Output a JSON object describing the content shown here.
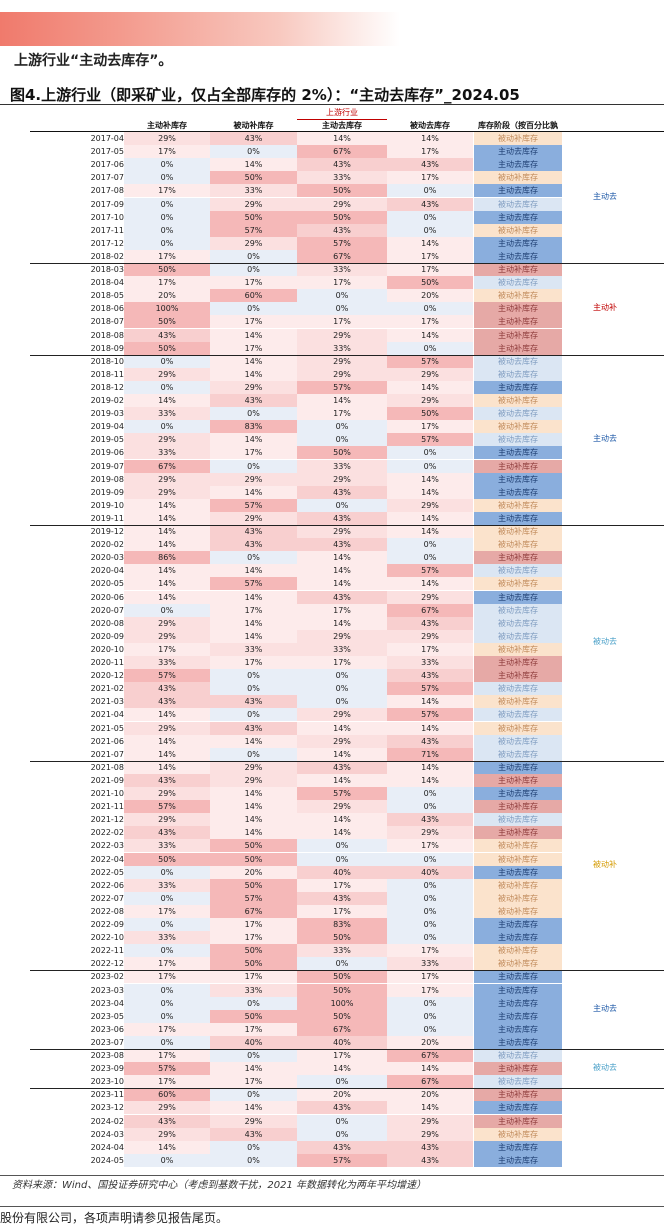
{
  "intro_text": "上游行业“主动去库存”。",
  "figure_title": "图4.上游行业（即采矿业，仅占全部库存的 2%）：“主动去库存”_2024.05",
  "group_header": "上游行业",
  "columns": [
    "主动补库存",
    "被动补库存",
    "主动去库存",
    "被动去库存",
    "库存阶段（按百分比孰高）"
  ],
  "stage_colors": {
    "主动补库存": "#e6a9a6",
    "被动补库存": "#fbe3cc",
    "主动去库存": "#8aaedd",
    "被动去库存": "#dbe6f3"
  },
  "stage_text_colors": {
    "主动补库存": "#8e3b3b",
    "被动补库存": "#c08a5a",
    "主动去库存": "#1f3f73",
    "被动去库存": "#7f9cc0"
  },
  "group_text_colors": {
    "主动去": "#1f5aa8",
    "主动补": "#c00000",
    "被动去": "#4aa0c8",
    "被动补": "#d49a00"
  },
  "rows": [
    {
      "date": "2017-04",
      "v": [
        "29%",
        "43%",
        "14%",
        "14%"
      ],
      "stage": "被动补库存"
    },
    {
      "date": "2017-05",
      "v": [
        "17%",
        "0%",
        "67%",
        "17%"
      ],
      "stage": "主动去库存"
    },
    {
      "date": "2017-06",
      "v": [
        "0%",
        "14%",
        "43%",
        "43%"
      ],
      "stage": "主动去库存"
    },
    {
      "date": "2017-07",
      "v": [
        "0%",
        "50%",
        "33%",
        "17%"
      ],
      "stage": "被动补库存"
    },
    {
      "date": "2017-08",
      "v": [
        "17%",
        "33%",
        "50%",
        "0%"
      ],
      "stage": "主动去库存"
    },
    {
      "date": "2017-09",
      "v": [
        "0%",
        "29%",
        "29%",
        "43%"
      ],
      "stage": "被动去库存"
    },
    {
      "date": "2017-10",
      "v": [
        "0%",
        "50%",
        "50%",
        "0%"
      ],
      "stage": "主动去库存"
    },
    {
      "date": "2017-11",
      "v": [
        "0%",
        "57%",
        "43%",
        "0%"
      ],
      "stage": "被动补库存"
    },
    {
      "date": "2017-12",
      "v": [
        "0%",
        "29%",
        "57%",
        "14%"
      ],
      "stage": "主动去库存"
    },
    {
      "date": "2018-02",
      "v": [
        "17%",
        "0%",
        "67%",
        "17%"
      ],
      "stage": "主动去库存"
    },
    {
      "date": "2018-03",
      "v": [
        "50%",
        "0%",
        "33%",
        "17%"
      ],
      "stage": "主动补库存"
    },
    {
      "date": "2018-04",
      "v": [
        "17%",
        "17%",
        "17%",
        "50%"
      ],
      "stage": "被动去库存"
    },
    {
      "date": "2018-05",
      "v": [
        "20%",
        "60%",
        "0%",
        "20%"
      ],
      "stage": "被动补库存"
    },
    {
      "date": "2018-06",
      "v": [
        "100%",
        "0%",
        "0%",
        "0%"
      ],
      "stage": "主动补库存"
    },
    {
      "date": "2018-07",
      "v": [
        "50%",
        "17%",
        "17%",
        "17%"
      ],
      "stage": "主动补库存"
    },
    {
      "date": "2018-08",
      "v": [
        "43%",
        "14%",
        "29%",
        "14%"
      ],
      "stage": "主动补库存"
    },
    {
      "date": "2018-09",
      "v": [
        "50%",
        "17%",
        "33%",
        "0%"
      ],
      "stage": "主动补库存"
    },
    {
      "date": "2018-10",
      "v": [
        "0%",
        "14%",
        "29%",
        "57%"
      ],
      "stage": "被动去库存"
    },
    {
      "date": "2018-11",
      "v": [
        "29%",
        "14%",
        "29%",
        "29%"
      ],
      "stage": "被动去库存"
    },
    {
      "date": "2018-12",
      "v": [
        "0%",
        "29%",
        "57%",
        "14%"
      ],
      "stage": "主动去库存"
    },
    {
      "date": "2019-02",
      "v": [
        "14%",
        "43%",
        "14%",
        "29%"
      ],
      "stage": "被动补库存"
    },
    {
      "date": "2019-03",
      "v": [
        "33%",
        "0%",
        "17%",
        "50%"
      ],
      "stage": "被动去库存"
    },
    {
      "date": "2019-04",
      "v": [
        "0%",
        "83%",
        "0%",
        "17%"
      ],
      "stage": "被动补库存"
    },
    {
      "date": "2019-05",
      "v": [
        "29%",
        "14%",
        "0%",
        "57%"
      ],
      "stage": "被动去库存"
    },
    {
      "date": "2019-06",
      "v": [
        "33%",
        "17%",
        "50%",
        "0%"
      ],
      "stage": "主动去库存"
    },
    {
      "date": "2019-07",
      "v": [
        "67%",
        "0%",
        "33%",
        "0%"
      ],
      "stage": "主动补库存"
    },
    {
      "date": "2019-08",
      "v": [
        "29%",
        "29%",
        "29%",
        "14%"
      ],
      "stage": "主动去库存"
    },
    {
      "date": "2019-09",
      "v": [
        "29%",
        "14%",
        "43%",
        "14%"
      ],
      "stage": "主动去库存"
    },
    {
      "date": "2019-10",
      "v": [
        "14%",
        "57%",
        "0%",
        "29%"
      ],
      "stage": "被动补库存"
    },
    {
      "date": "2019-11",
      "v": [
        "14%",
        "29%",
        "43%",
        "14%"
      ],
      "stage": "主动去库存"
    },
    {
      "date": "2019-12",
      "v": [
        "14%",
        "43%",
        "29%",
        "14%"
      ],
      "stage": "被动补库存"
    },
    {
      "date": "2020-02",
      "v": [
        "14%",
        "43%",
        "43%",
        "0%"
      ],
      "stage": "被动补库存"
    },
    {
      "date": "2020-03",
      "v": [
        "86%",
        "0%",
        "14%",
        "0%"
      ],
      "stage": "主动补库存"
    },
    {
      "date": "2020-04",
      "v": [
        "14%",
        "14%",
        "14%",
        "57%"
      ],
      "stage": "被动去库存"
    },
    {
      "date": "2020-05",
      "v": [
        "14%",
        "57%",
        "14%",
        "14%"
      ],
      "stage": "被动补库存"
    },
    {
      "date": "2020-06",
      "v": [
        "14%",
        "14%",
        "43%",
        "29%"
      ],
      "stage": "主动去库存"
    },
    {
      "date": "2020-07",
      "v": [
        "0%",
        "17%",
        "17%",
        "67%"
      ],
      "stage": "被动去库存"
    },
    {
      "date": "2020-08",
      "v": [
        "29%",
        "14%",
        "14%",
        "43%"
      ],
      "stage": "被动去库存"
    },
    {
      "date": "2020-09",
      "v": [
        "29%",
        "14%",
        "29%",
        "29%"
      ],
      "stage": "被动去库存"
    },
    {
      "date": "2020-10",
      "v": [
        "17%",
        "33%",
        "33%",
        "17%"
      ],
      "stage": "被动补库存"
    },
    {
      "date": "2020-11",
      "v": [
        "33%",
        "17%",
        "17%",
        "33%"
      ],
      "stage": "主动补库存"
    },
    {
      "date": "2020-12",
      "v": [
        "57%",
        "0%",
        "0%",
        "43%"
      ],
      "stage": "主动补库存"
    },
    {
      "date": "2021-02",
      "v": [
        "43%",
        "0%",
        "0%",
        "57%"
      ],
      "stage": "被动去库存"
    },
    {
      "date": "2021-03",
      "v": [
        "43%",
        "43%",
        "0%",
        "14%"
      ],
      "stage": "被动补库存"
    },
    {
      "date": "2021-04",
      "v": [
        "14%",
        "0%",
        "29%",
        "57%"
      ],
      "stage": "被动去库存"
    },
    {
      "date": "2021-05",
      "v": [
        "29%",
        "43%",
        "14%",
        "14%"
      ],
      "stage": "被动补库存"
    },
    {
      "date": "2021-06",
      "v": [
        "14%",
        "14%",
        "29%",
        "43%"
      ],
      "stage": "被动去库存"
    },
    {
      "date": "2021-07",
      "v": [
        "14%",
        "0%",
        "14%",
        "71%"
      ],
      "stage": "被动去库存"
    },
    {
      "date": "2021-08",
      "v": [
        "14%",
        "29%",
        "43%",
        "14%"
      ],
      "stage": "主动去库存"
    },
    {
      "date": "2021-09",
      "v": [
        "43%",
        "29%",
        "14%",
        "14%"
      ],
      "stage": "主动补库存"
    },
    {
      "date": "2021-10",
      "v": [
        "29%",
        "14%",
        "57%",
        "0%"
      ],
      "stage": "主动去库存"
    },
    {
      "date": "2021-11",
      "v": [
        "57%",
        "14%",
        "29%",
        "0%"
      ],
      "stage": "主动补库存"
    },
    {
      "date": "2021-12",
      "v": [
        "29%",
        "14%",
        "14%",
        "43%"
      ],
      "stage": "被动去库存"
    },
    {
      "date": "2022-02",
      "v": [
        "43%",
        "14%",
        "14%",
        "29%"
      ],
      "stage": "主动补库存"
    },
    {
      "date": "2022-03",
      "v": [
        "33%",
        "50%",
        "0%",
        "17%"
      ],
      "stage": "被动补库存"
    },
    {
      "date": "2022-04",
      "v": [
        "50%",
        "50%",
        "0%",
        "0%"
      ],
      "stage": "被动补库存"
    },
    {
      "date": "2022-05",
      "v": [
        "0%",
        "20%",
        "40%",
        "40%"
      ],
      "stage": "主动去库存"
    },
    {
      "date": "2022-06",
      "v": [
        "33%",
        "50%",
        "17%",
        "0%"
      ],
      "stage": "被动补库存"
    },
    {
      "date": "2022-07",
      "v": [
        "0%",
        "57%",
        "43%",
        "0%"
      ],
      "stage": "被动补库存"
    },
    {
      "date": "2022-08",
      "v": [
        "17%",
        "67%",
        "17%",
        "0%"
      ],
      "stage": "被动补库存"
    },
    {
      "date": "2022-09",
      "v": [
        "0%",
        "17%",
        "83%",
        "0%"
      ],
      "stage": "主动去库存"
    },
    {
      "date": "2022-10",
      "v": [
        "33%",
        "17%",
        "50%",
        "0%"
      ],
      "stage": "主动去库存"
    },
    {
      "date": "2022-11",
      "v": [
        "0%",
        "50%",
        "33%",
        "17%"
      ],
      "stage": "被动补库存"
    },
    {
      "date": "2022-12",
      "v": [
        "17%",
        "50%",
        "0%",
        "33%"
      ],
      "stage": "被动补库存"
    },
    {
      "date": "2023-02",
      "v": [
        "17%",
        "17%",
        "50%",
        "17%"
      ],
      "stage": "主动去库存"
    },
    {
      "date": "2023-03",
      "v": [
        "0%",
        "33%",
        "50%",
        "17%"
      ],
      "stage": "主动去库存"
    },
    {
      "date": "2023-04",
      "v": [
        "0%",
        "0%",
        "100%",
        "0%"
      ],
      "stage": "主动去库存"
    },
    {
      "date": "2023-05",
      "v": [
        "0%",
        "50%",
        "50%",
        "0%"
      ],
      "stage": "主动去库存"
    },
    {
      "date": "2023-06",
      "v": [
        "17%",
        "17%",
        "67%",
        "0%"
      ],
      "stage": "主动去库存"
    },
    {
      "date": "2023-07",
      "v": [
        "0%",
        "40%",
        "40%",
        "20%"
      ],
      "stage": "主动去库存"
    },
    {
      "date": "2023-08",
      "v": [
        "17%",
        "0%",
        "17%",
        "67%"
      ],
      "stage": "被动去库存"
    },
    {
      "date": "2023-09",
      "v": [
        "57%",
        "14%",
        "14%",
        "14%"
      ],
      "stage": "主动补库存"
    },
    {
      "date": "2023-10",
      "v": [
        "17%",
        "17%",
        "0%",
        "67%"
      ],
      "stage": "被动去库存"
    },
    {
      "date": "2023-11",
      "v": [
        "60%",
        "0%",
        "20%",
        "20%"
      ],
      "stage": "主动补库存"
    },
    {
      "date": "2023-12",
      "v": [
        "29%",
        "14%",
        "43%",
        "14%"
      ],
      "stage": "主动去库存"
    },
    {
      "date": "2024-02",
      "v": [
        "43%",
        "29%",
        "0%",
        "29%"
      ],
      "stage": "主动补库存"
    },
    {
      "date": "2024-03",
      "v": [
        "29%",
        "43%",
        "0%",
        "29%"
      ],
      "stage": "被动补库存"
    },
    {
      "date": "2024-04",
      "v": [
        "14%",
        "0%",
        "43%",
        "43%"
      ],
      "stage": "主动去库存"
    },
    {
      "date": "2024-05",
      "v": [
        "0%",
        "0%",
        "57%",
        "43%"
      ],
      "stage": "主动去库存"
    }
  ],
  "groups": [
    {
      "label": "主动去",
      "start": 0,
      "end": 9
    },
    {
      "label": "主动补",
      "start": 10,
      "end": 16
    },
    {
      "label": "主动去",
      "start": 17,
      "end": 29
    },
    {
      "label": "被动去",
      "start": 30,
      "end": 47
    },
    {
      "label": "被动补",
      "start": 48,
      "end": 63
    },
    {
      "label": "主动去",
      "start": 64,
      "end": 69
    },
    {
      "label": "被动去",
      "start": 70,
      "end": 72
    },
    {
      "label": "",
      "start": 73,
      "end": 79
    }
  ],
  "source_note": "资料来源：Wind、国投证券研究中心（考虑到基数干扰，2021 年数据转化为两年平均增速）",
  "footer_text": "股份有限公司，各项声明请参见报告尾页。"
}
